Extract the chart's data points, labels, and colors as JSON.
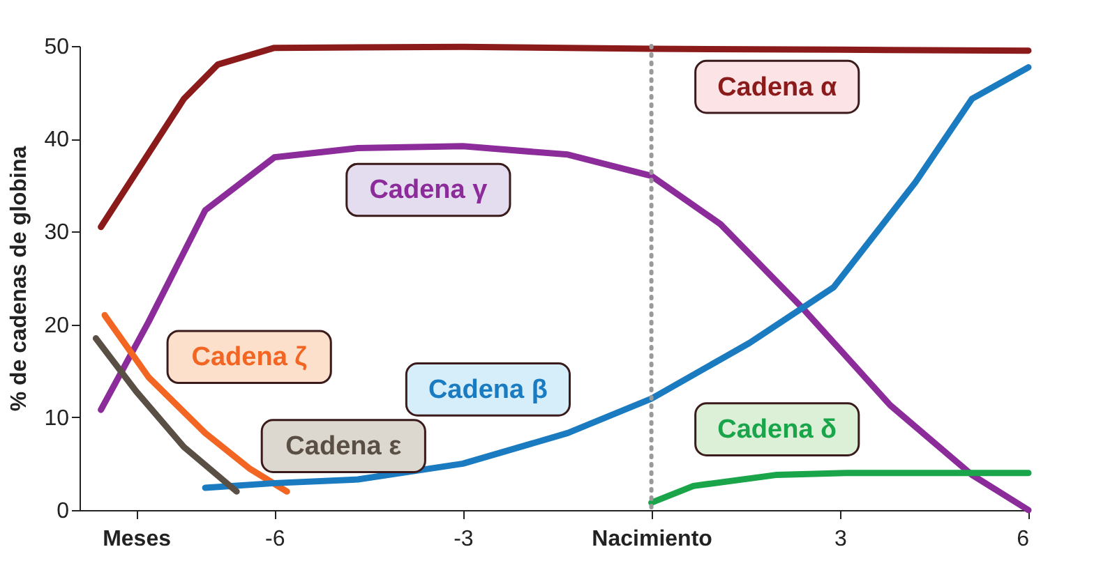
{
  "chart_data": {
    "type": "line",
    "ylabel": "% de cadenas de globina",
    "xlim": [
      -9.1,
      6
    ],
    "xticks": [
      {
        "value": -8.2,
        "label": "Meses"
      },
      -6,
      -3,
      {
        "value": 0,
        "label": "Nacimiento"
      },
      3,
      6
    ],
    "ylim": [
      0,
      50
    ],
    "yticks": [
      0,
      10,
      20,
      30,
      40,
      50
    ],
    "grid": false,
    "legend": false,
    "marker": "none",
    "line_style": "solid",
    "ref_lines": [
      {
        "axis": "x",
        "value": 0,
        "color": "#9a9a9a",
        "line_style": "dotted"
      }
    ],
    "series": [
      {
        "name": "Cadena α",
        "color": "#8b1a1a",
        "x": [
          -8.76,
          -7.44,
          -6.9,
          -6,
          -3,
          0,
          3,
          6
        ],
        "values": [
          30.5,
          44.3,
          48,
          49.8,
          49.9,
          49.7,
          49.6,
          49.5
        ]
      },
      {
        "name": "Cadena γ",
        "color": "#8b2c9a",
        "x": [
          -8.76,
          -8,
          -7.1,
          -6,
          -4.67,
          -3,
          -1.33,
          0,
          1.1,
          2.4,
          3.8,
          5.1,
          6
        ],
        "values": [
          10.8,
          20.3,
          32.3,
          38,
          39,
          39.2,
          38.3,
          36,
          30.8,
          21.8,
          11.3,
          3.8,
          0
        ]
      },
      {
        "name": "Cadena ζ",
        "color": "#f26522",
        "x": [
          -8.7,
          -8,
          -7.1,
          -6.4,
          -5.8
        ],
        "values": [
          21,
          14.3,
          8.3,
          4.5,
          2
        ]
      },
      {
        "name": "Cadena β",
        "color": "#1a7bc0",
        "x": [
          -7.1,
          -6,
          -4.67,
          -3,
          -1.33,
          0,
          1.56,
          2.9,
          4.2,
          5.1,
          6
        ],
        "values": [
          2.4,
          2.9,
          3.3,
          5,
          8.3,
          12,
          18,
          24,
          35.3,
          44.3,
          47.7
        ]
      },
      {
        "name": "Cadena ε",
        "color": "#5a4f44",
        "x": [
          -8.84,
          -8.2,
          -7.44,
          -6.6
        ],
        "values": [
          18.5,
          12.8,
          6.8,
          2
        ]
      },
      {
        "name": "Cadena δ",
        "color": "#1aa54a",
        "x": [
          0,
          0.67,
          2,
          3.1,
          6
        ],
        "values": [
          0.8,
          2.6,
          3.8,
          4,
          4
        ]
      }
    ]
  }
}
